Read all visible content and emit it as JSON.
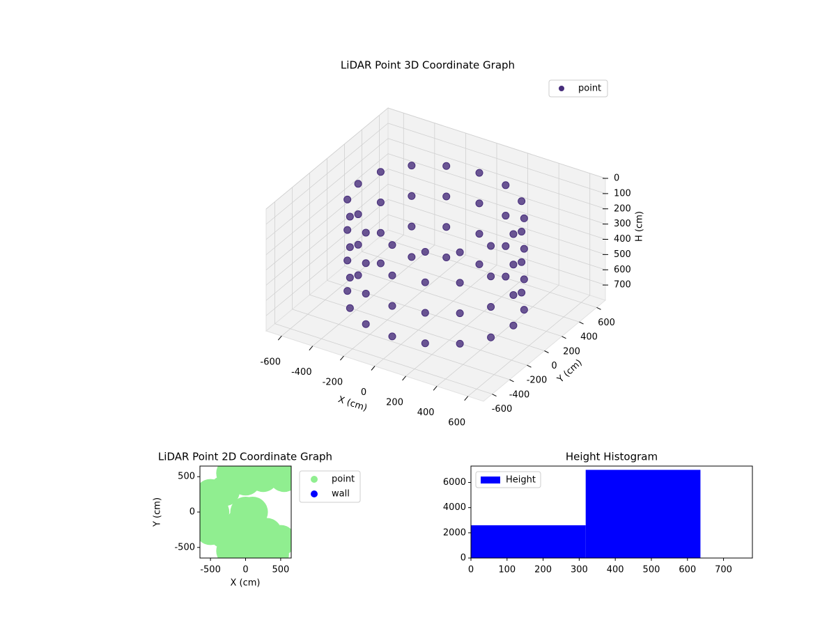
{
  "chart_data": [
    {
      "type": "scatter3d",
      "title": "LiDAR Point 3D Coordinate Graph",
      "xlabel": "X (cm)",
      "ylabel": "Y (cm)",
      "zlabel": "H (cm)",
      "xlim": [
        -700,
        700
      ],
      "ylim": [
        -700,
        700
      ],
      "zlim": [
        800,
        0
      ],
      "xticks": [
        -600,
        -400,
        -200,
        0,
        200,
        400,
        600
      ],
      "yticks": [
        -600,
        -400,
        -200,
        0,
        200,
        400,
        600
      ],
      "zticks": [
        0,
        100,
        200,
        300,
        400,
        500,
        600,
        700
      ],
      "grid": true,
      "legend": "upper right",
      "series": [
        {
          "name": "point",
          "color": "#472d7b",
          "x": [
            500,
            462,
            354,
            191,
            0,
            -191,
            -354,
            -462,
            -500,
            -462,
            -354,
            -191,
            0,
            191,
            354,
            462,
            500,
            462,
            354,
            191,
            0,
            -191,
            -354,
            -462,
            -500,
            -462,
            -354,
            -191,
            0,
            191,
            354,
            462,
            500,
            462,
            354,
            191,
            0,
            -191,
            -354,
            -462,
            -500,
            -462,
            -354,
            -191,
            0,
            191,
            354,
            462,
            500,
            462,
            354,
            191,
            0,
            -191,
            -354,
            -462,
            -500,
            -462,
            -354,
            -191,
            0,
            191,
            354,
            462
          ],
          "y": [
            0,
            191,
            354,
            462,
            500,
            462,
            354,
            191,
            0,
            -191,
            -354,
            -462,
            -500,
            -462,
            -354,
            -191,
            0,
            191,
            354,
            462,
            500,
            462,
            354,
            191,
            0,
            -191,
            -354,
            -462,
            -500,
            -462,
            -354,
            -191,
            0,
            191,
            354,
            462,
            500,
            462,
            354,
            191,
            0,
            -191,
            -354,
            -462,
            -500,
            -462,
            -354,
            -191,
            0,
            191,
            354,
            462,
            500,
            462,
            354,
            191,
            0,
            -191,
            -354,
            -462,
            -500,
            -462,
            -354,
            -191
          ],
          "z": [
            100,
            100,
            100,
            100,
            100,
            100,
            100,
            100,
            100,
            100,
            100,
            100,
            100,
            100,
            100,
            100,
            300,
            300,
            300,
            300,
            300,
            300,
            300,
            300,
            300,
            300,
            300,
            300,
            300,
            300,
            300,
            300,
            500,
            500,
            500,
            500,
            500,
            500,
            500,
            500,
            500,
            500,
            500,
            500,
            500,
            500,
            500,
            500,
            700,
            700,
            700,
            700,
            700,
            700,
            700,
            700,
            700,
            700,
            700,
            700,
            700,
            700,
            700,
            700
          ]
        }
      ]
    },
    {
      "type": "scatter",
      "title": "LiDAR Point 2D Coordinate Graph",
      "xlabel": "X (cm)",
      "ylabel": "Y (cm)",
      "xlim": [
        -650,
        650
      ],
      "ylim": [
        -650,
        650
      ],
      "xticks": [
        -500,
        0,
        500
      ],
      "yticks": [
        -500,
        0,
        500
      ],
      "legend": "outside right",
      "series": [
        {
          "name": "point",
          "color": "#90ee90",
          "x": [
            0,
            100,
            -300,
            -300,
            -450,
            0,
            0,
            300,
            250,
            -200,
            -200,
            250,
            500,
            550,
            600,
            -500,
            -500,
            -50,
            400
          ],
          "y": [
            0,
            0,
            300,
            -300,
            0,
            450,
            -450,
            -300,
            500,
            550,
            -550,
            -550,
            -400,
            500,
            620,
            250,
            -250,
            -150,
            -600
          ]
        },
        {
          "name": "wall",
          "color": "#0000ff",
          "x": [],
          "y": []
        }
      ]
    },
    {
      "type": "histogram",
      "title": "Height Histogram",
      "xlim": [
        0,
        780
      ],
      "ylim": [
        0,
        7300
      ],
      "xticks": [
        0,
        100,
        200,
        300,
        400,
        500,
        600,
        700
      ],
      "yticks": [
        0,
        2000,
        4000,
        6000
      ],
      "legend": "upper left",
      "bins": [
        0,
        318,
        636
      ],
      "series": [
        {
          "name": "Height",
          "color": "#0000ff",
          "values": [
            2600,
            7000
          ]
        }
      ]
    }
  ]
}
